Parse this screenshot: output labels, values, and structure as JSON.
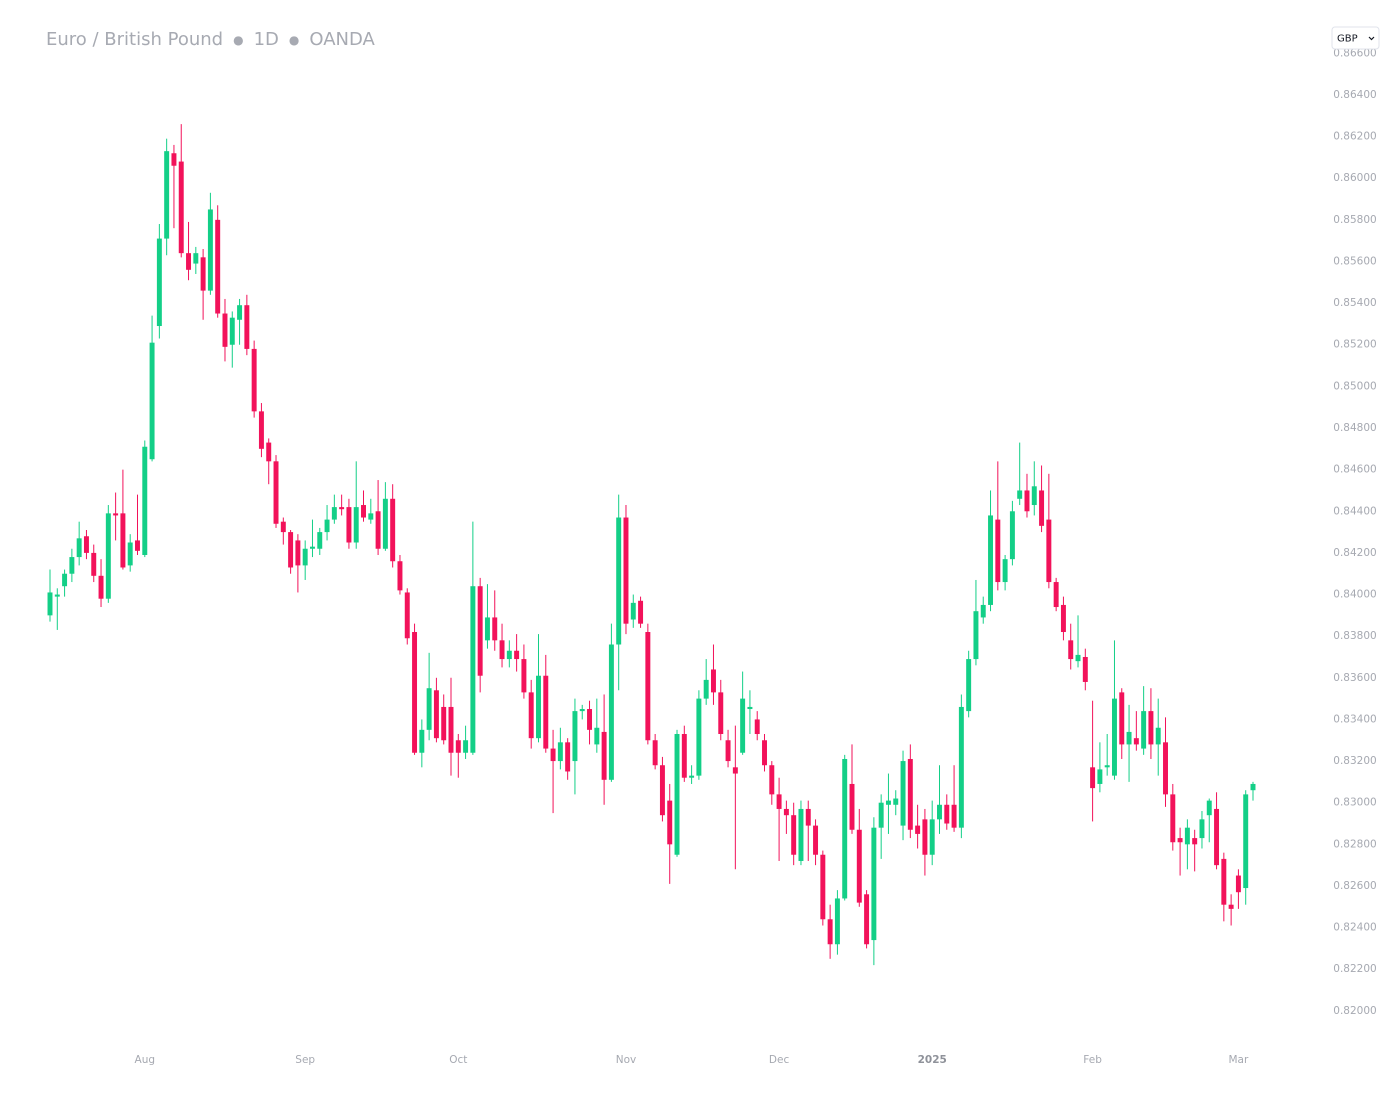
{
  "chart_data": {
    "type": "candlestick",
    "title": "Euro / British Pound",
    "interval": "1D",
    "source": "OANDA",
    "currency": "GBP",
    "up_color": "#13cf87",
    "down_color": "#f2125a",
    "grid": false,
    "ylim": [
      0.8186,
      0.8664
    ],
    "yticks": [
      {
        "value": 0.82,
        "label": "0.82000"
      },
      {
        "value": 0.822,
        "label": "0.82200"
      },
      {
        "value": 0.824,
        "label": "0.82400"
      },
      {
        "value": 0.826,
        "label": "0.82600"
      },
      {
        "value": 0.828,
        "label": "0.82800"
      },
      {
        "value": 0.83,
        "label": "0.83000"
      },
      {
        "value": 0.832,
        "label": "0.83200"
      },
      {
        "value": 0.834,
        "label": "0.83400"
      },
      {
        "value": 0.836,
        "label": "0.83600"
      },
      {
        "value": 0.838,
        "label": "0.83800"
      },
      {
        "value": 0.84,
        "label": "0.84000"
      },
      {
        "value": 0.842,
        "label": "0.84200"
      },
      {
        "value": 0.844,
        "label": "0.84400"
      },
      {
        "value": 0.846,
        "label": "0.84600"
      },
      {
        "value": 0.848,
        "label": "0.84800"
      },
      {
        "value": 0.85,
        "label": "0.85000"
      },
      {
        "value": 0.852,
        "label": "0.85200"
      },
      {
        "value": 0.854,
        "label": "0.85400"
      },
      {
        "value": 0.856,
        "label": "0.85600"
      },
      {
        "value": 0.858,
        "label": "0.85800"
      },
      {
        "value": 0.86,
        "label": "0.86000"
      },
      {
        "value": 0.862,
        "label": "0.86200"
      },
      {
        "value": 0.864,
        "label": "0.86400"
      },
      {
        "value": 0.866,
        "label": "0.86600"
      }
    ],
    "categories": [
      null,
      null,
      null,
      null,
      null,
      null,
      null,
      null,
      null,
      null,
      null,
      null,
      null,
      "Aug",
      null,
      null,
      null,
      null,
      null,
      null,
      null,
      null,
      null,
      null,
      null,
      null,
      null,
      null,
      null,
      null,
      null,
      null,
      null,
      null,
      null,
      "Sep",
      null,
      null,
      null,
      null,
      null,
      null,
      null,
      null,
      null,
      null,
      null,
      null,
      null,
      null,
      null,
      null,
      null,
      null,
      null,
      null,
      "Oct",
      null,
      null,
      null,
      null,
      null,
      null,
      null,
      null,
      null,
      null,
      null,
      null,
      null,
      null,
      null,
      null,
      null,
      null,
      null,
      null,
      null,
      null,
      "Nov",
      null,
      null,
      null,
      null,
      null,
      null,
      null,
      null,
      null,
      null,
      null,
      null,
      null,
      null,
      null,
      null,
      null,
      null,
      null,
      null,
      "Dec",
      null,
      null,
      null,
      null,
      null,
      null,
      null,
      null,
      null,
      null,
      null,
      null,
      null,
      null,
      null,
      null,
      null,
      null,
      null,
      null,
      "2025",
      null,
      null,
      null,
      null,
      null,
      null,
      null,
      null,
      null,
      null,
      null,
      null,
      null,
      null,
      null,
      null,
      null,
      null,
      null,
      null,
      null,
      "Feb",
      null,
      null,
      null,
      null,
      null,
      null,
      null,
      null,
      null,
      null,
      null,
      null,
      null,
      null,
      null,
      null,
      null,
      null,
      null,
      "Mar",
      null,
      null
    ],
    "open": [
      0.839,
      0.8399,
      0.8404,
      0.841,
      0.8418,
      0.8428,
      0.842,
      0.8409,
      0.8398,
      0.8439,
      0.8439,
      0.8414,
      0.8426,
      0.8419,
      0.8465,
      0.8529,
      0.8571,
      0.8612,
      0.8608,
      0.8564,
      0.8559,
      0.8562,
      0.8546,
      0.858,
      0.8535,
      0.852,
      0.8532,
      0.8539,
      0.8518,
      0.8488,
      0.8473,
      0.8464,
      0.8435,
      0.843,
      0.8426,
      0.8414,
      0.8422,
      0.8422,
      0.843,
      0.8436,
      0.8442,
      0.8442,
      0.8425,
      0.8443,
      0.8436,
      0.844,
      0.8422,
      0.8446,
      0.8416,
      0.8401,
      0.8382,
      0.8324,
      0.8335,
      0.8354,
      0.8346,
      0.8346,
      0.833,
      0.8324,
      0.8324,
      0.8404,
      0.8378,
      0.8389,
      0.8378,
      0.8369,
      0.8373,
      0.8369,
      0.8353,
      0.8331,
      0.8361,
      0.8326,
      0.832,
      0.8329,
      0.832,
      0.8344,
      0.8345,
      0.8328,
      0.8334,
      0.8311,
      0.8376,
      0.8437,
      0.8388,
      0.8397,
      0.8382,
      0.833,
      0.8318,
      0.8301,
      0.8275,
      0.8333,
      0.8312,
      0.8313,
      0.835,
      0.8364,
      0.8353,
      0.833,
      0.8317,
      0.8324,
      0.8345,
      0.834,
      0.833,
      0.8318,
      0.8304,
      0.8297,
      0.8294,
      0.8272,
      0.8297,
      0.8289,
      0.8275,
      0.8244,
      0.8232,
      0.8254,
      0.8309,
      0.8287,
      0.8256,
      0.8234,
      0.8288,
      0.8299,
      0.8299,
      0.8289,
      0.8321,
      0.8289,
      0.8292,
      0.8275,
      0.8292,
      0.8299,
      0.8299,
      0.8288,
      0.8344,
      0.8369,
      0.8389,
      0.8395,
      0.8436,
      0.8406,
      0.8417,
      0.8446,
      0.845,
      0.8443,
      0.845,
      0.8436,
      0.8406,
      0.8395,
      0.8378,
      0.8368,
      0.837,
      0.8317,
      0.8309,
      0.8317,
      0.8313,
      0.8353,
      0.8328,
      0.8331,
      0.8326,
      0.8344,
      0.8328,
      0.8329,
      0.8304,
      0.8283,
      0.828,
      0.8283,
      0.8283,
      0.8294,
      0.8297,
      0.8273,
      0.8251,
      0.8265,
      0.8259,
      0.8306
    ],
    "high": [
      0.8412,
      0.8403,
      0.8412,
      0.8422,
      0.8435,
      0.8431,
      0.8424,
      0.8417,
      0.8443,
      0.8449,
      0.846,
      0.8429,
      0.8448,
      0.8474,
      0.8534,
      0.8578,
      0.8619,
      0.8616,
      0.8626,
      0.8579,
      0.8567,
      0.8566,
      0.8593,
      0.8587,
      0.8542,
      0.8536,
      0.8542,
      0.8544,
      0.8522,
      0.8492,
      0.8475,
      0.8467,
      0.8437,
      0.8431,
      0.8429,
      0.8426,
      0.8436,
      0.8432,
      0.8443,
      0.8448,
      0.8448,
      0.8446,
      0.8464,
      0.845,
      0.8446,
      0.8455,
      0.8454,
      0.8453,
      0.8419,
      0.8403,
      0.8386,
      0.834,
      0.8372,
      0.836,
      0.8352,
      0.836,
      0.8333,
      0.8337,
      0.8435,
      0.8408,
      0.8405,
      0.8402,
      0.8386,
      0.8378,
      0.8381,
      0.8376,
      0.8359,
      0.8381,
      0.8371,
      0.8335,
      0.8336,
      0.8331,
      0.835,
      0.8347,
      0.8349,
      0.835,
      0.8352,
      0.8386,
      0.8448,
      0.8443,
      0.84,
      0.8399,
      0.8386,
      0.8333,
      0.8322,
      0.8309,
      0.8335,
      0.8337,
      0.8318,
      0.8354,
      0.8369,
      0.8376,
      0.8359,
      0.8335,
      0.8337,
      0.8363,
      0.8354,
      0.8344,
      0.8333,
      0.832,
      0.8312,
      0.8301,
      0.83,
      0.8301,
      0.8301,
      0.8292,
      0.8277,
      0.8251,
      0.8258,
      0.8323,
      0.8328,
      0.8297,
      0.8258,
      0.8293,
      0.8304,
      0.8314,
      0.8306,
      0.8325,
      0.8328,
      0.8299,
      0.8297,
      0.8301,
      0.8318,
      0.8304,
      0.8318,
      0.8352,
      0.8373,
      0.8407,
      0.8399,
      0.845,
      0.8464,
      0.8419,
      0.8445,
      0.8473,
      0.8458,
      0.8464,
      0.8462,
      0.8458,
      0.8408,
      0.8399,
      0.8386,
      0.839,
      0.8374,
      0.8349,
      0.8329,
      0.8333,
      0.8378,
      0.8355,
      0.8347,
      0.8344,
      0.8356,
      0.8355,
      0.835,
      0.8341,
      0.8309,
      0.8288,
      0.8292,
      0.8287,
      0.8296,
      0.8302,
      0.8305,
      0.8276,
      0.8256,
      0.8268,
      0.8306,
      0.831
    ],
    "low": [
      0.8387,
      0.8383,
      0.8399,
      0.8406,
      0.8414,
      0.8417,
      0.8406,
      0.8394,
      0.8396,
      0.8426,
      0.8412,
      0.8411,
      0.8419,
      0.8418,
      0.8464,
      0.8523,
      0.8563,
      0.8576,
      0.8562,
      0.8551,
      0.8554,
      0.8532,
      0.8544,
      0.8533,
      0.8512,
      0.8509,
      0.852,
      0.8515,
      0.8485,
      0.8466,
      0.8453,
      0.8432,
      0.8424,
      0.841,
      0.8401,
      0.8407,
      0.8418,
      0.8419,
      0.8426,
      0.8434,
      0.8438,
      0.8422,
      0.8422,
      0.8435,
      0.8434,
      0.8419,
      0.8421,
      0.8413,
      0.84,
      0.8376,
      0.8323,
      0.8317,
      0.833,
      0.8329,
      0.8328,
      0.8313,
      0.8312,
      0.8321,
      0.8323,
      0.8353,
      0.8374,
      0.8373,
      0.8365,
      0.8365,
      0.8363,
      0.835,
      0.8326,
      0.8329,
      0.8324,
      0.8295,
      0.8316,
      0.8311,
      0.8304,
      0.834,
      0.8328,
      0.8324,
      0.8299,
      0.831,
      0.8354,
      0.8381,
      0.8384,
      0.8384,
      0.8328,
      0.8316,
      0.8291,
      0.8261,
      0.8274,
      0.831,
      0.8309,
      0.8311,
      0.8347,
      0.8347,
      0.833,
      0.8317,
      0.8268,
      0.8323,
      0.8333,
      0.833,
      0.8315,
      0.8299,
      0.8272,
      0.8285,
      0.827,
      0.827,
      0.8272,
      0.827,
      0.8241,
      0.8225,
      0.8227,
      0.8253,
      0.8285,
      0.825,
      0.823,
      0.8222,
      0.8273,
      0.8285,
      0.8294,
      0.8282,
      0.8283,
      0.8278,
      0.8265,
      0.827,
      0.8285,
      0.8287,
      0.8286,
      0.8283,
      0.8341,
      0.8366,
      0.8386,
      0.8392,
      0.8402,
      0.8402,
      0.8414,
      0.8443,
      0.8437,
      0.8438,
      0.843,
      0.8403,
      0.8392,
      0.8378,
      0.8364,
      0.8365,
      0.8354,
      0.8291,
      0.8305,
      0.8313,
      0.8311,
      0.8321,
      0.831,
      0.8325,
      0.8323,
      0.8321,
      0.8313,
      0.8298,
      0.8277,
      0.8265,
      0.8268,
      0.8267,
      0.8278,
      0.8281,
      0.8268,
      0.8243,
      0.8241,
      0.8249,
      0.8251,
      0.8301
    ],
    "close": [
      0.8401,
      0.84,
      0.841,
      0.8418,
      0.8427,
      0.842,
      0.8409,
      0.8398,
      0.8439,
      0.8438,
      0.8413,
      0.8425,
      0.8421,
      0.8471,
      0.8521,
      0.8571,
      0.8613,
      0.8606,
      0.8564,
      0.8556,
      0.8564,
      0.8546,
      0.8585,
      0.8535,
      0.8519,
      0.8533,
      0.8539,
      0.8518,
      0.8488,
      0.847,
      0.8464,
      0.8434,
      0.843,
      0.8413,
      0.8414,
      0.8422,
      0.8423,
      0.843,
      0.8436,
      0.8442,
      0.8441,
      0.8425,
      0.8442,
      0.8437,
      0.8439,
      0.8422,
      0.8446,
      0.8416,
      0.8402,
      0.8379,
      0.8324,
      0.8335,
      0.8355,
      0.8331,
      0.833,
      0.8324,
      0.8324,
      0.833,
      0.8404,
      0.8361,
      0.8389,
      0.8378,
      0.8369,
      0.8373,
      0.8369,
      0.8353,
      0.8331,
      0.8361,
      0.8326,
      0.832,
      0.8329,
      0.8315,
      0.8344,
      0.8345,
      0.8335,
      0.8336,
      0.8311,
      0.8376,
      0.8437,
      0.8386,
      0.8396,
      0.8386,
      0.833,
      0.8318,
      0.8294,
      0.828,
      0.8333,
      0.8312,
      0.8313,
      0.835,
      0.8359,
      0.8353,
      0.8333,
      0.832,
      0.8314,
      0.835,
      0.8346,
      0.8333,
      0.8318,
      0.8304,
      0.8297,
      0.8294,
      0.8275,
      0.8297,
      0.8289,
      0.8275,
      0.8244,
      0.8232,
      0.8254,
      0.8321,
      0.8287,
      0.8252,
      0.8232,
      0.8288,
      0.83,
      0.8301,
      0.8302,
      0.832,
      0.8287,
      0.8285,
      0.8275,
      0.8292,
      0.8299,
      0.829,
      0.8288,
      0.8346,
      0.8369,
      0.8392,
      0.8395,
      0.8438,
      0.8406,
      0.8417,
      0.844,
      0.845,
      0.844,
      0.8452,
      0.8433,
      0.8406,
      0.8394,
      0.8382,
      0.8369,
      0.8371,
      0.8358,
      0.8307,
      0.8316,
      0.8318,
      0.835,
      0.8328,
      0.8334,
      0.8328,
      0.8344,
      0.8328,
      0.8336,
      0.8304,
      0.8281,
      0.8281,
      0.8288,
      0.828,
      0.8292,
      0.8301,
      0.827,
      0.8251,
      0.8249,
      0.8257,
      0.8304,
      0.8309
    ]
  }
}
